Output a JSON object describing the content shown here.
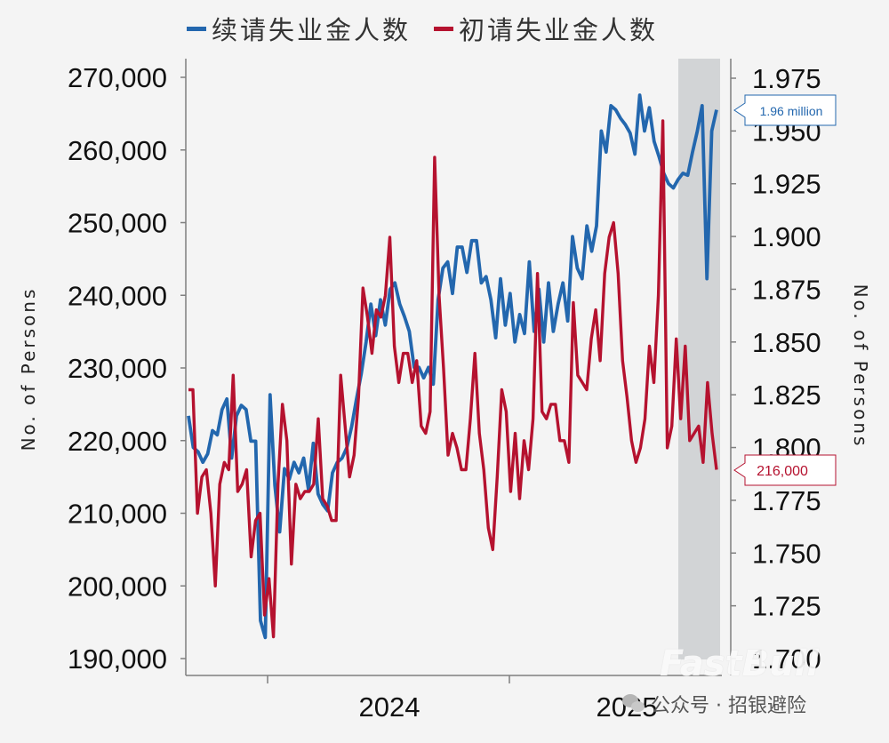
{
  "legend": {
    "continuing_label": "续请失业金人数",
    "initial_label": "初请失业金人数"
  },
  "axes": {
    "left_title": "No.  of Persons",
    "right_title": "No.  of Persons"
  },
  "callouts": {
    "continuing_latest": "1.96 million",
    "initial_latest": "216,000"
  },
  "watermark": "FastBull",
  "source": "公众号 · 招银避险",
  "colors": {
    "continuing": "#2367ae",
    "initial": "#b5122f",
    "shade": "#d2d4d6",
    "axis": "#7f7f7f"
  },
  "chart_data": {
    "type": "line",
    "title": "",
    "x_tick_labels": [
      "2024",
      "2025"
    ],
    "shaded_region": "last ~9 weeks (2025)",
    "left_axis": {
      "ylim": [
        190000,
        270000
      ],
      "ticks": [
        "190,000",
        "200,000",
        "210,000",
        "220,000",
        "230,000",
        "240,000",
        "250,000",
        "260,000",
        "270,000"
      ]
    },
    "right_axis": {
      "ylim": [
        1.7,
        1.975
      ],
      "ticks": [
        "1.700",
        "1.725",
        "1.750",
        "1.775",
        "1.800",
        "1.825",
        "1.850",
        "1.875",
        "1.900",
        "1.925",
        "1.950",
        "1.975"
      ]
    },
    "series": [
      {
        "name": "续请失业金人数",
        "axis": "right",
        "values": [
          1.815,
          1.8,
          1.798,
          1.793,
          1.797,
          1.808,
          1.806,
          1.818,
          1.823,
          1.795,
          1.815,
          1.82,
          1.818,
          1.803,
          1.803,
          1.718,
          1.71,
          1.825,
          1.782,
          1.76,
          1.79,
          1.785,
          1.793,
          1.788,
          1.795,
          1.78,
          1.802,
          1.778,
          1.773,
          1.77,
          1.788,
          1.793,
          1.795,
          1.8,
          1.81,
          1.823,
          1.835,
          1.85,
          1.868,
          1.853,
          1.87,
          1.858,
          1.875,
          1.878,
          1.868,
          1.862,
          1.855,
          1.838,
          1.838,
          1.833,
          1.838,
          1.83,
          1.87,
          1.885,
          1.888,
          1.873,
          1.895,
          1.895,
          1.883,
          1.898,
          1.898,
          1.878,
          1.881,
          1.87,
          1.852,
          1.88,
          1.858,
          1.873,
          1.85,
          1.863,
          1.854,
          1.888,
          1.855,
          1.875,
          1.85,
          1.878,
          1.855,
          1.868,
          1.878,
          1.86,
          1.9,
          1.885,
          1.88,
          1.905,
          1.893,
          1.905,
          1.95,
          1.94,
          1.962,
          1.96,
          1.956,
          1.953,
          1.949,
          1.939,
          1.967,
          1.95,
          1.961,
          1.945,
          1.938,
          1.93,
          1.925,
          1.923,
          1.927,
          1.93,
          1.929,
          1.94,
          1.95,
          1.962,
          1.88,
          1.95,
          1.96
        ]
      },
      {
        "name": "初请失业金人数",
        "axis": "left",
        "values": [
          227000,
          227000,
          210000,
          215000,
          216000,
          210000,
          200000,
          214000,
          217000,
          216000,
          229000,
          213000,
          214000,
          216000,
          204000,
          209000,
          210000,
          196000,
          201000,
          193000,
          214000,
          225000,
          220000,
          203000,
          214000,
          212000,
          213000,
          213000,
          214000,
          223000,
          212000,
          211000,
          209000,
          209000,
          229000,
          222000,
          215000,
          218000,
          226000,
          241000,
          237000,
          232000,
          238000,
          237000,
          240000,
          248000,
          233000,
          228000,
          232000,
          232000,
          228000,
          231000,
          222000,
          221000,
          224000,
          259000,
          240000,
          230000,
          218000,
          221000,
          219000,
          216000,
          216000,
          223000,
          232000,
          221000,
          216000,
          208000,
          205000,
          215000,
          227000,
          224000,
          213000,
          221000,
          212000,
          220000,
          216000,
          223000,
          243000,
          224000,
          223000,
          225000,
          225000,
          220000,
          220000,
          217000,
          239000,
          229000,
          228000,
          227000,
          234000,
          238000,
          231000,
          243000,
          248000,
          250000,
          243000,
          231000,
          226000,
          220000,
          217000,
          219000,
          223000,
          233000,
          228000,
          240000,
          264000,
          219000,
          222000,
          234000,
          223000,
          233000,
          220000,
          221000,
          222000,
          217000,
          228000,
          221000,
          216000
        ]
      }
    ]
  }
}
